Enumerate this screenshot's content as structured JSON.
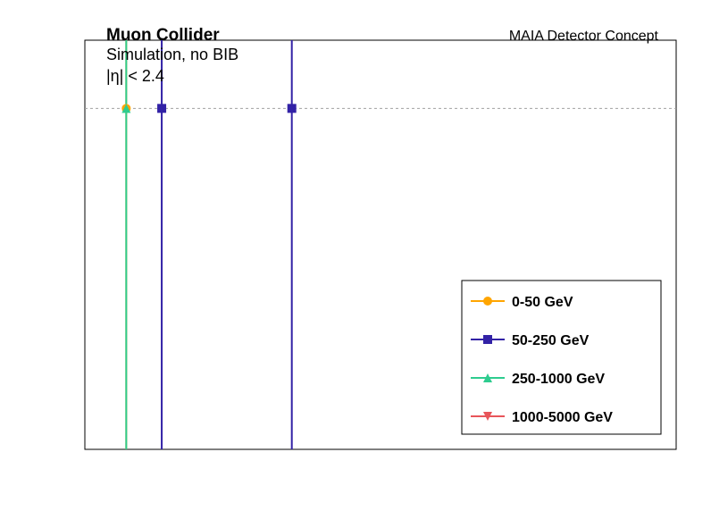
{
  "chart_data": {
    "type": "scatter",
    "experiment": "Muon Collider",
    "subtitle": "Simulation, no BIB",
    "selection": "|η| < 2.4",
    "detector": "MAIA Detector Concept",
    "xlabel": "",
    "ylabel": "",
    "xlim": [
      0,
      10
    ],
    "ylim": [
      0,
      1.2
    ],
    "reference_line": 1.0,
    "grid": false,
    "legend_position": "bottom-right",
    "series": [
      {
        "name": "0-50 GeV",
        "color": "#ffa500",
        "marker": "circle",
        "points": [
          {
            "x": 0.7,
            "y": 1.0
          }
        ]
      },
      {
        "name": "50-250 GeV",
        "color": "#3222a6",
        "marker": "square",
        "points": [
          {
            "x": 1.3,
            "y": 1.0
          },
          {
            "x": 3.5,
            "y": 1.0
          }
        ]
      },
      {
        "name": "250-1000 GeV",
        "color": "#2ecc8f",
        "marker": "triangle-up",
        "points": [
          {
            "x": 0.7,
            "y": 1.0
          }
        ]
      },
      {
        "name": "1000-5000 GeV",
        "color": "#e8555a",
        "marker": "triangle-down",
        "points": []
      }
    ]
  }
}
